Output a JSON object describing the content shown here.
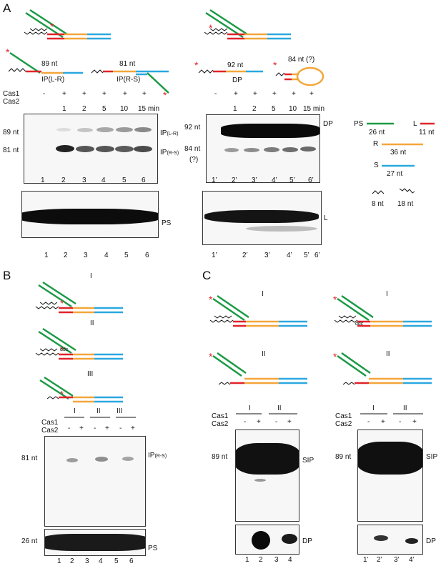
{
  "colors": {
    "PS": "#1b9a45",
    "L": "#e0242a",
    "R": "#f4a63a",
    "S": "#2aa8e0",
    "star": "#e0242a",
    "ink": "#111111"
  },
  "A": {
    "label": "A",
    "left": {
      "ip_lr": "89 nt",
      "ip_lr_name": "IP(L-R)",
      "ip_rs": "81 nt",
      "ip_rs_name": "IP(R-S)",
      "cas1": "Cas1",
      "cas2": "Cas2",
      "lane_signs": [
        "-",
        "+",
        "+",
        "+",
        "+",
        "+"
      ],
      "times": [
        "1",
        "2",
        "5",
        "10",
        "15 min"
      ],
      "marker_89": "89 nt",
      "marker_81": "81 nt",
      "band_top": "IP",
      "band_top_sub": "(L-R)",
      "band_bot": "IP",
      "band_bot_sub": "(R-S)",
      "lanes": [
        "1",
        "2",
        "3",
        "4",
        "5",
        "6"
      ],
      "ps_label": "PS"
    },
    "right": {
      "dp_nt": "92 nt",
      "dp_name": "DP",
      "q_nt": "84 nt (?)",
      "lane_signs": [
        "-",
        "+",
        "+",
        "+",
        "+",
        "+"
      ],
      "times": [
        "1",
        "2",
        "5",
        "10",
        "15 min"
      ],
      "marker_92": "92 nt",
      "marker_84": "84 nt",
      "marker_q": "(?)",
      "band_dp": "DP",
      "lanes": [
        "1’",
        "2’",
        "3’",
        "4’",
        "5’",
        "6’"
      ],
      "l_label": "L"
    },
    "legend": {
      "ps": "PS",
      "ps_nt": "26 nt",
      "l": "L",
      "l_nt": "11 nt",
      "r": "R",
      "r_nt": "36 nt",
      "s": "S",
      "s_nt": "27 nt",
      "w8": "8 nt",
      "w18": "18 nt"
    }
  },
  "B": {
    "label": "B",
    "roman": [
      "I",
      "II",
      "III"
    ],
    "ddc": "ddc",
    "groups": [
      "I",
      "II",
      "III"
    ],
    "cas1": "Cas1",
    "cas2": "Cas2",
    "signs": [
      "-",
      "+",
      "-",
      "+",
      "-",
      "+"
    ],
    "marker_81": "81 nt",
    "band": "IP",
    "band_sub": "(R-S)",
    "marker_26": "26 nt",
    "ps_label": "PS",
    "lanes": [
      "1",
      "2",
      "3",
      "4",
      "5",
      "6"
    ]
  },
  "C": {
    "label": "C",
    "roman_left": [
      "I",
      "II"
    ],
    "roman_right": [
      "I",
      "II"
    ],
    "ddc": "ddc",
    "groups": [
      "I",
      "II"
    ],
    "cas1": "Cas1",
    "cas2": "Cas2",
    "signs": [
      "-",
      "+",
      "-",
      "+"
    ],
    "marker_89": "89 nt",
    "sip": "SIP",
    "dp": "DP",
    "lanes_left": [
      "1",
      "2",
      "3",
      "4"
    ],
    "lanes_right": [
      "1’",
      "2’",
      "3’",
      "4’"
    ]
  }
}
